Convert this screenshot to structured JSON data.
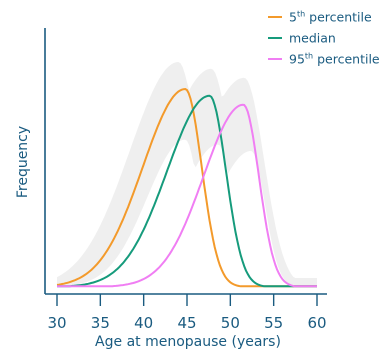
{
  "chart_data": {
    "type": "line",
    "title": "",
    "xlabel": "Age at menopause (years)",
    "ylabel": "Frequency",
    "xlim": [
      28,
      62
    ],
    "x_ticks": [
      30,
      35,
      40,
      45,
      50,
      55,
      60
    ],
    "y_ticks": [],
    "grid": false,
    "legend_position": "top-right",
    "axis_color": "#1a5b80",
    "band_color": "#efefef",
    "series": [
      {
        "name": "5th percentile",
        "name_base": "5",
        "name_sup": "th",
        "name_rest": " percentile",
        "color": "#f39a2b",
        "peak_x": 44.8,
        "peak_y": 0.88,
        "sd_left": 4.9,
        "sd_right": 1.9
      },
      {
        "name": "median",
        "name_base": "median",
        "name_sup": "",
        "name_rest": "",
        "color": "#169b7c",
        "peak_x": 47.6,
        "peak_y": 0.85,
        "sd_left": 4.9,
        "sd_right": 1.9
      },
      {
        "name": "95th percentile",
        "name_base": "95",
        "name_sup": "th",
        "name_rest": " percentile",
        "color": "#f07ef3",
        "peak_x": 51.5,
        "peak_y": 0.81,
        "sd_left": 4.6,
        "sd_right": 1.8
      }
    ],
    "band": {
      "upper_peaks": [
        [
          44,
          1.0
        ],
        [
          47.8,
          0.97
        ],
        [
          51.6,
          0.93
        ]
      ],
      "left_width": 5.6,
      "right_width": 2.3,
      "lower_offset": 0.09
    }
  }
}
